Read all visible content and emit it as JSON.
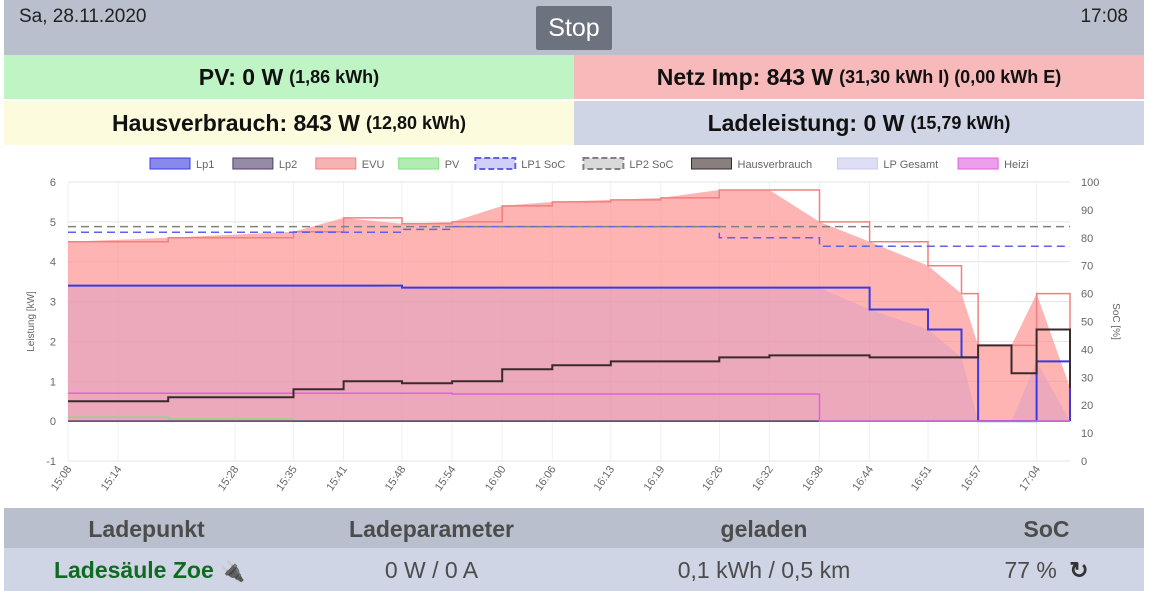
{
  "header": {
    "date": "Sa, 28.11.2020",
    "time": "17:08",
    "stop_label": "Stop"
  },
  "summary": {
    "pv": {
      "label": "PV: 0 W",
      "detail": "(1,86 kWh)"
    },
    "netz": {
      "label": "Netz Imp: 843 W",
      "detail": "(31,30 kWh I) (0,00 kWh E)"
    },
    "haus": {
      "label": "Hausverbrauch: 843 W",
      "detail": "(12,80 kWh)"
    },
    "lade": {
      "label": "Ladeleistung: 0 W",
      "detail": "(15,79 kWh)"
    }
  },
  "chart_data": {
    "type": "line",
    "ylabel": "Leistung [kW]",
    "y2label": "SoC [%]",
    "ylim": [
      -1,
      6
    ],
    "y2lim": [
      0,
      100
    ],
    "yticks": [
      "6",
      "5",
      "4",
      "3",
      "2",
      "1",
      "0",
      "-1"
    ],
    "y2ticks": [
      "100",
      "90",
      "80",
      "70",
      "60",
      "50",
      "40",
      "30",
      "20",
      "10",
      "0"
    ],
    "x_ticks": [
      "15:08",
      "15:14",
      "15:28",
      "15:35",
      "15:41",
      "15:48",
      "15:54",
      "16:00",
      "16:06",
      "16:13",
      "16:19",
      "16:26",
      "16:32",
      "16:38",
      "16:44",
      "16:51",
      "16:57",
      "17:04"
    ],
    "grid": true,
    "legend_position": "top",
    "x": [
      "15:08",
      "15:20",
      "15:35",
      "15:41",
      "15:48",
      "15:54",
      "16:00",
      "16:06",
      "16:13",
      "16:19",
      "16:26",
      "16:32",
      "16:38",
      "16:44",
      "16:51",
      "16:55",
      "16:57",
      "17:01",
      "17:04",
      "17:08"
    ],
    "series": [
      {
        "name": "Lp1",
        "color": "#3a3ae0",
        "values": [
          3.4,
          3.4,
          3.4,
          3.4,
          3.35,
          3.35,
          3.35,
          3.35,
          3.35,
          3.35,
          3.35,
          3.35,
          3.35,
          2.8,
          2.3,
          1.6,
          0,
          0,
          1.5,
          0
        ]
      },
      {
        "name": "Lp2",
        "color": "#4e3d6b",
        "values": [
          0,
          0,
          0,
          0,
          0,
          0,
          0,
          0,
          0,
          0,
          0,
          0,
          0,
          0,
          0,
          0,
          0,
          0,
          0,
          0
        ]
      },
      {
        "name": "EVU",
        "color": "#f08080",
        "values": [
          4.5,
          4.6,
          4.75,
          5.1,
          4.95,
          5.0,
          5.4,
          5.5,
          5.55,
          5.6,
          5.8,
          5.8,
          5.0,
          4.5,
          3.9,
          3.2,
          1.9,
          1.9,
          3.2,
          0.84
        ]
      },
      {
        "name": "PV",
        "color": "#80e080",
        "values": [
          0.1,
          0.05,
          0,
          0,
          0,
          0,
          0,
          0,
          0,
          0,
          0,
          0,
          0,
          0,
          0,
          0,
          0,
          0,
          0,
          0
        ]
      },
      {
        "name": "LP1 SoC",
        "color": "#6060e8",
        "dashed": true,
        "axis": "right",
        "values": [
          82,
          82,
          82,
          82,
          83,
          84,
          84,
          84,
          84,
          84,
          80,
          80,
          77,
          77,
          77,
          77,
          77,
          77,
          77,
          77
        ]
      },
      {
        "name": "LP2 SoC",
        "color": "#808080",
        "dashed": true,
        "axis": "right",
        "values": [
          84,
          84,
          84,
          84,
          84,
          84,
          84,
          84,
          84,
          84,
          84,
          84,
          84,
          84,
          84,
          84,
          84,
          84,
          84,
          84
        ]
      },
      {
        "name": "Hausverbrauch",
        "color": "#3a2a2a",
        "values": [
          0.5,
          0.6,
          0.8,
          1.0,
          0.95,
          1.0,
          1.3,
          1.4,
          1.5,
          1.5,
          1.6,
          1.65,
          1.65,
          1.6,
          1.6,
          1.6,
          1.9,
          1.2,
          2.3,
          0.84
        ]
      },
      {
        "name": "LP Gesamt",
        "color": "#c8c8f0",
        "values": [
          3.4,
          3.4,
          3.4,
          3.4,
          3.35,
          3.35,
          3.35,
          3.35,
          3.35,
          3.35,
          3.35,
          3.35,
          3.35,
          2.8,
          2.3,
          1.6,
          0,
          0,
          1.5,
          0
        ]
      },
      {
        "name": "Heizi",
        "color": "#e060e0",
        "values": [
          0.7,
          0.7,
          0.7,
          0.7,
          0.7,
          0.68,
          0.68,
          0.68,
          0.68,
          0.68,
          0.68,
          0.68,
          0,
          0,
          0,
          0,
          0,
          0,
          0,
          0
        ]
      }
    ]
  },
  "table": {
    "headers": [
      "Ladepunkt",
      "Ladeparameter",
      "geladen",
      "SoC"
    ],
    "row": {
      "name": "Ladesäule Zoe",
      "plug_icon": "plug-icon",
      "parameter": "0 W / 0 A",
      "geladen": "0,1 kWh / 0,5 km",
      "soc": "77 %",
      "refresh_icon": "refresh-icon"
    }
  },
  "colors": {
    "accent": "#6c737f",
    "pv_bg": "#bff5c5",
    "netz_bg": "#f7b9b9",
    "haus_bg": "#fcfbde",
    "lade_bg": "#cfd5e4"
  }
}
